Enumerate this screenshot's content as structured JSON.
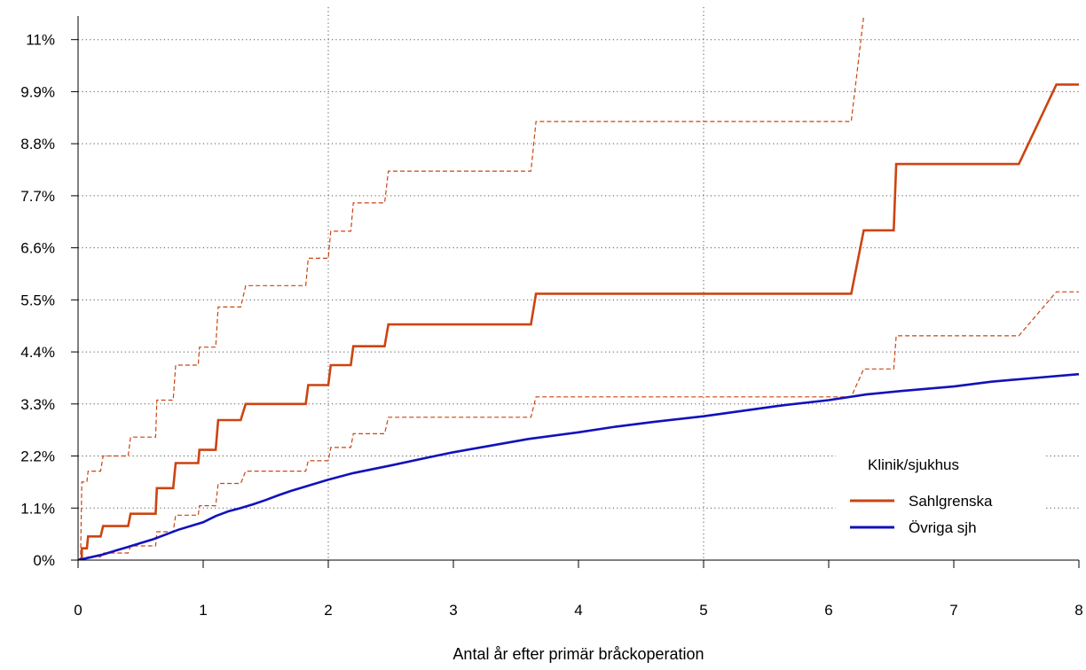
{
  "chart_data": {
    "type": "line",
    "title": "",
    "xlabel": "Antal år efter primär bråckoperation",
    "ylabel": "",
    "xlim": [
      0,
      8
    ],
    "ylim": [
      0,
      11.5
    ],
    "x_ticks": [
      "0",
      "1",
      "2",
      "3",
      "4",
      "5",
      "6",
      "7",
      "8"
    ],
    "y_ticks": [
      {
        "value": 0,
        "label": "0%"
      },
      {
        "value": 1.1,
        "label": "1.1%"
      },
      {
        "value": 2.2,
        "label": "2.2%"
      },
      {
        "value": 3.3,
        "label": "3.3%"
      },
      {
        "value": 4.4,
        "label": "4.4%"
      },
      {
        "value": 5.5,
        "label": "5.5%"
      },
      {
        "value": 6.6,
        "label": "6.6%"
      },
      {
        "value": 7.7,
        "label": "7.7%"
      },
      {
        "value": 8.8,
        "label": "8.8%"
      },
      {
        "value": 9.9,
        "label": "9.9%"
      },
      {
        "value": 11,
        "label": "11%"
      }
    ],
    "grid": "dotted",
    "legend": {
      "title": "Klinik/sjukhus",
      "position": "bottom-right"
    },
    "series": [
      {
        "name": "Sahlgrenska",
        "color": "#cc4411",
        "style": "step",
        "points": [
          [
            0,
            0
          ],
          [
            0.02,
            0.02
          ],
          [
            0.03,
            0.02
          ],
          [
            0.03,
            0.25
          ],
          [
            0.07,
            0.25
          ],
          [
            0.08,
            0.5
          ],
          [
            0.18,
            0.5
          ],
          [
            0.2,
            0.72
          ],
          [
            0.4,
            0.72
          ],
          [
            0.42,
            0.98
          ],
          [
            0.62,
            0.98
          ],
          [
            0.63,
            1.52
          ],
          [
            0.76,
            1.52
          ],
          [
            0.78,
            2.05
          ],
          [
            0.96,
            2.05
          ],
          [
            0.97,
            2.33
          ],
          [
            1.1,
            2.33
          ],
          [
            1.12,
            2.96
          ],
          [
            1.3,
            2.96
          ],
          [
            1.34,
            3.3
          ],
          [
            1.82,
            3.3
          ],
          [
            1.84,
            3.7
          ],
          [
            2.0,
            3.7
          ],
          [
            2.02,
            4.12
          ],
          [
            2.18,
            4.12
          ],
          [
            2.2,
            4.52
          ],
          [
            2.45,
            4.52
          ],
          [
            2.48,
            4.98
          ],
          [
            3.62,
            4.98
          ],
          [
            3.66,
            5.63
          ],
          [
            6.18,
            5.63
          ],
          [
            6.28,
            6.97
          ],
          [
            6.52,
            6.97
          ],
          [
            6.54,
            8.37
          ],
          [
            7.52,
            8.37
          ],
          [
            7.82,
            10.05
          ],
          [
            8.0,
            10.05
          ]
        ]
      },
      {
        "name": "Sahlgrenska upper",
        "color": "#cc4411",
        "style": "dashed",
        "points": [
          [
            0,
            0
          ],
          [
            0.02,
            0.02
          ],
          [
            0.03,
            1.65
          ],
          [
            0.07,
            1.65
          ],
          [
            0.08,
            1.88
          ],
          [
            0.18,
            1.88
          ],
          [
            0.2,
            2.2
          ],
          [
            0.4,
            2.2
          ],
          [
            0.42,
            2.6
          ],
          [
            0.62,
            2.6
          ],
          [
            0.63,
            3.38
          ],
          [
            0.76,
            3.38
          ],
          [
            0.78,
            4.12
          ],
          [
            0.96,
            4.12
          ],
          [
            0.97,
            4.5
          ],
          [
            1.1,
            4.5
          ],
          [
            1.12,
            5.35
          ],
          [
            1.3,
            5.35
          ],
          [
            1.34,
            5.8
          ],
          [
            1.82,
            5.8
          ],
          [
            1.84,
            6.38
          ],
          [
            2.0,
            6.38
          ],
          [
            2.02,
            6.95
          ],
          [
            2.18,
            6.95
          ],
          [
            2.2,
            7.55
          ],
          [
            2.45,
            7.55
          ],
          [
            2.48,
            8.22
          ],
          [
            3.62,
            8.22
          ],
          [
            3.66,
            9.27
          ],
          [
            6.18,
            9.27
          ],
          [
            6.28,
            11.5
          ]
        ]
      },
      {
        "name": "Sahlgrenska lower",
        "color": "#cc4411",
        "style": "dashed",
        "points": [
          [
            0,
            0
          ],
          [
            0.03,
            0.02
          ],
          [
            0.07,
            0.03
          ],
          [
            0.08,
            0.07
          ],
          [
            0.18,
            0.07
          ],
          [
            0.2,
            0.15
          ],
          [
            0.4,
            0.15
          ],
          [
            0.42,
            0.3
          ],
          [
            0.62,
            0.3
          ],
          [
            0.63,
            0.6
          ],
          [
            0.76,
            0.6
          ],
          [
            0.78,
            0.95
          ],
          [
            0.96,
            0.95
          ],
          [
            0.97,
            1.15
          ],
          [
            1.1,
            1.15
          ],
          [
            1.12,
            1.62
          ],
          [
            1.3,
            1.62
          ],
          [
            1.34,
            1.88
          ],
          [
            1.82,
            1.88
          ],
          [
            1.84,
            2.1
          ],
          [
            2.0,
            2.1
          ],
          [
            2.02,
            2.38
          ],
          [
            2.18,
            2.38
          ],
          [
            2.2,
            2.67
          ],
          [
            2.45,
            2.67
          ],
          [
            2.48,
            3.02
          ],
          [
            3.62,
            3.02
          ],
          [
            3.66,
            3.45
          ],
          [
            6.18,
            3.45
          ],
          [
            6.28,
            4.04
          ],
          [
            6.52,
            4.04
          ],
          [
            6.54,
            4.74
          ],
          [
            7.52,
            4.74
          ],
          [
            7.82,
            5.67
          ],
          [
            8.0,
            5.67
          ]
        ]
      },
      {
        "name": "Övriga sjh",
        "color": "#1111bb",
        "style": "solid",
        "points": [
          [
            0,
            0
          ],
          [
            0.1,
            0.06
          ],
          [
            0.2,
            0.12
          ],
          [
            0.3,
            0.2
          ],
          [
            0.4,
            0.28
          ],
          [
            0.5,
            0.36
          ],
          [
            0.6,
            0.44
          ],
          [
            0.7,
            0.54
          ],
          [
            0.8,
            0.64
          ],
          [
            1.0,
            0.8
          ],
          [
            1.1,
            0.93
          ],
          [
            1.2,
            1.03
          ],
          [
            1.3,
            1.1
          ],
          [
            1.4,
            1.18
          ],
          [
            1.5,
            1.27
          ],
          [
            1.6,
            1.37
          ],
          [
            1.7,
            1.46
          ],
          [
            1.8,
            1.54
          ],
          [
            2.0,
            1.7
          ],
          [
            2.2,
            1.84
          ],
          [
            2.5,
            2.0
          ],
          [
            2.8,
            2.17
          ],
          [
            3.0,
            2.28
          ],
          [
            3.3,
            2.42
          ],
          [
            3.6,
            2.56
          ],
          [
            4.0,
            2.7
          ],
          [
            4.3,
            2.82
          ],
          [
            4.6,
            2.92
          ],
          [
            5.0,
            3.04
          ],
          [
            5.3,
            3.15
          ],
          [
            5.6,
            3.26
          ],
          [
            6.0,
            3.38
          ],
          [
            6.3,
            3.5
          ],
          [
            6.6,
            3.58
          ],
          [
            7.0,
            3.67
          ],
          [
            7.3,
            3.77
          ],
          [
            7.6,
            3.84
          ],
          [
            8.0,
            3.93
          ]
        ]
      }
    ]
  }
}
